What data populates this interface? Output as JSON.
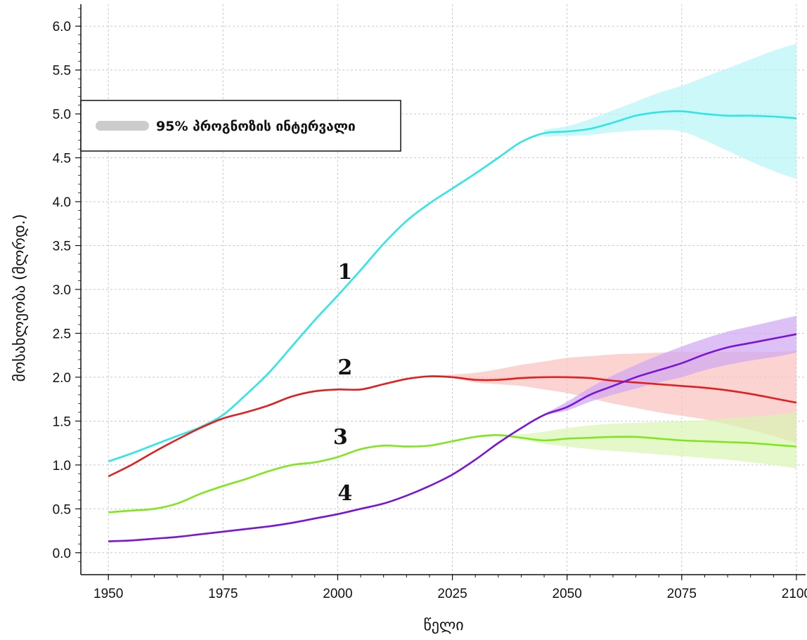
{
  "chart_data": {
    "type": "line",
    "xlabel": "წელი",
    "ylabel": "მოსახლეობა (მლრდ.)",
    "xlim": [
      1944,
      2102
    ],
    "ylim": [
      -0.25,
      6.25
    ],
    "x_ticks": [
      "1950",
      "1975",
      "2000",
      "2025",
      "2050",
      "2075",
      "2100"
    ],
    "y_ticks": [
      "0.0",
      "0.5",
      "1.0",
      "1.5",
      "2.0",
      "2.5",
      "3.0",
      "3.5",
      "4.0",
      "4.5",
      "5.0",
      "5.5",
      "6.0"
    ],
    "grid": true,
    "legend": {
      "placement": "top-left",
      "label": "95% პროგნოზის ინტერვალი",
      "color": "#cccccc"
    },
    "series": [
      {
        "name": "1",
        "color": "#2ee6e6",
        "band_color": "#b8f5f7",
        "x": [
          1950,
          1955,
          1960,
          1965,
          1970,
          1975,
          1980,
          1985,
          1990,
          1995,
          2000,
          2005,
          2010,
          2015,
          2020,
          2025,
          2030,
          2035,
          2040,
          2045,
          2050,
          2055,
          2060,
          2065,
          2070,
          2075,
          2080,
          2085,
          2090,
          2095,
          2100
        ],
        "values": [
          1.04,
          1.13,
          1.23,
          1.33,
          1.43,
          1.57,
          1.8,
          2.05,
          2.35,
          2.65,
          2.93,
          3.22,
          3.52,
          3.78,
          3.98,
          4.15,
          4.32,
          4.5,
          4.68,
          4.78,
          4.8,
          4.83,
          4.9,
          4.98,
          5.02,
          5.03,
          5.0,
          4.98,
          4.98,
          4.97,
          4.95
        ],
        "band": {
          "x": [
            2045,
            2050,
            2055,
            2060,
            2065,
            2070,
            2075,
            2080,
            2085,
            2090,
            2095,
            2100
          ],
          "lower": [
            4.74,
            4.75,
            4.76,
            4.79,
            4.81,
            4.82,
            4.8,
            4.7,
            4.58,
            4.46,
            4.35,
            4.26
          ],
          "upper": [
            4.82,
            4.86,
            4.94,
            5.04,
            5.14,
            5.24,
            5.32,
            5.42,
            5.52,
            5.62,
            5.72,
            5.8
          ]
        }
      },
      {
        "name": "2",
        "color": "#e21e1e",
        "band_color": "#f9c0bd",
        "x": [
          1950,
          1955,
          1960,
          1965,
          1970,
          1975,
          1980,
          1985,
          1990,
          1995,
          2000,
          2005,
          2010,
          2015,
          2020,
          2025,
          2030,
          2035,
          2040,
          2045,
          2050,
          2055,
          2060,
          2065,
          2070,
          2075,
          2080,
          2085,
          2090,
          2095,
          2100
        ],
        "values": [
          0.87,
          1.0,
          1.15,
          1.29,
          1.42,
          1.53,
          1.6,
          1.68,
          1.78,
          1.84,
          1.86,
          1.86,
          1.92,
          1.98,
          2.01,
          2.0,
          1.97,
          1.97,
          1.99,
          2.0,
          2.0,
          1.99,
          1.96,
          1.94,
          1.92,
          1.9,
          1.88,
          1.85,
          1.81,
          1.76,
          1.71
        ],
        "band": {
          "x": [
            2020,
            2025,
            2030,
            2035,
            2040,
            2045,
            2050,
            2055,
            2060,
            2065,
            2070,
            2075,
            2080,
            2085,
            2090,
            2095,
            2100
          ],
          "lower": [
            2.0,
            1.99,
            1.94,
            1.92,
            1.9,
            1.86,
            1.82,
            1.76,
            1.7,
            1.65,
            1.6,
            1.56,
            1.52,
            1.46,
            1.4,
            1.33,
            1.25
          ],
          "upper": [
            2.02,
            2.03,
            2.05,
            2.09,
            2.14,
            2.18,
            2.22,
            2.24,
            2.26,
            2.27,
            2.28,
            2.29,
            2.29,
            2.29,
            2.29,
            2.29,
            2.3
          ]
        }
      },
      {
        "name": "3",
        "color": "#7fe61e",
        "band_color": "#d8f5b4",
        "x": [
          1950,
          1955,
          1960,
          1965,
          1970,
          1975,
          1980,
          1985,
          1990,
          1995,
          2000,
          2005,
          2010,
          2015,
          2020,
          2025,
          2030,
          2035,
          2040,
          2045,
          2050,
          2055,
          2060,
          2065,
          2070,
          2075,
          2080,
          2085,
          2090,
          2095,
          2100
        ],
        "values": [
          0.46,
          0.48,
          0.5,
          0.56,
          0.67,
          0.76,
          0.84,
          0.93,
          1.0,
          1.03,
          1.09,
          1.18,
          1.22,
          1.21,
          1.22,
          1.27,
          1.32,
          1.34,
          1.31,
          1.28,
          1.3,
          1.31,
          1.32,
          1.32,
          1.3,
          1.28,
          1.27,
          1.26,
          1.25,
          1.23,
          1.21
        ],
        "band": {
          "x": [
            2035,
            2040,
            2045,
            2050,
            2055,
            2060,
            2065,
            2070,
            2075,
            2080,
            2085,
            2090,
            2095,
            2100
          ],
          "lower": [
            1.33,
            1.29,
            1.24,
            1.21,
            1.18,
            1.16,
            1.14,
            1.12,
            1.1,
            1.08,
            1.06,
            1.03,
            1.0,
            0.96
          ],
          "upper": [
            1.35,
            1.35,
            1.38,
            1.42,
            1.45,
            1.47,
            1.48,
            1.49,
            1.5,
            1.51,
            1.53,
            1.55,
            1.57,
            1.6
          ]
        }
      },
      {
        "name": "4",
        "color": "#7a14d6",
        "band_color": "#cfa6f2",
        "x": [
          1950,
          1955,
          1960,
          1965,
          1970,
          1975,
          1980,
          1985,
          1990,
          1995,
          2000,
          2005,
          2010,
          2015,
          2020,
          2025,
          2030,
          2035,
          2040,
          2045,
          2050,
          2055,
          2060,
          2065,
          2070,
          2075,
          2080,
          2085,
          2090,
          2095,
          2100
        ],
        "values": [
          0.13,
          0.14,
          0.16,
          0.18,
          0.21,
          0.24,
          0.27,
          0.3,
          0.34,
          0.39,
          0.44,
          0.5,
          0.56,
          0.65,
          0.76,
          0.89,
          1.06,
          1.25,
          1.42,
          1.57,
          1.66,
          1.8,
          1.9,
          2.0,
          2.08,
          2.16,
          2.26,
          2.34,
          2.39,
          2.44,
          2.49
        ],
        "band": {
          "x": [
            2040,
            2045,
            2050,
            2055,
            2060,
            2065,
            2070,
            2075,
            2080,
            2085,
            2090,
            2095,
            2100
          ],
          "lower": [
            1.42,
            1.56,
            1.62,
            1.72,
            1.8,
            1.87,
            1.94,
            2.0,
            2.08,
            2.14,
            2.19,
            2.23,
            2.28
          ],
          "upper": [
            1.43,
            1.58,
            1.72,
            1.88,
            2.02,
            2.14,
            2.25,
            2.35,
            2.44,
            2.52,
            2.58,
            2.64,
            2.7
          ]
        }
      }
    ]
  }
}
